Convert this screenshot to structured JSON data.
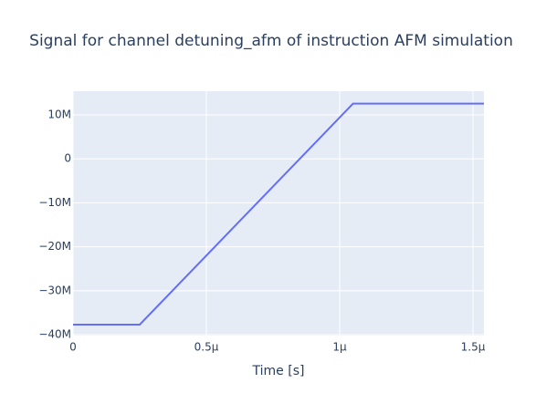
{
  "chart_data": {
    "type": "line",
    "title": "Signal for channel detuning_afm of instruction AFM simulation",
    "x_label": "Time [s]",
    "x": [
      0,
      2.5e-07,
      1.05e-06,
      1.541e-06
    ],
    "series": [
      {
        "color": "#636efa",
        "values": [
          -37700000,
          -37700000,
          12570000,
          12570000
        ]
      }
    ],
    "xlim": [
      0,
      1.541e-06
    ],
    "ylim": [
      -40200000,
      15400000
    ],
    "xticks": [
      0,
      {
        "value": 5e-07,
        "label": "0.5μ"
      },
      {
        "value": 1e-06,
        "label": "1μ"
      },
      {
        "value": 1.5e-06,
        "label": "1.5μ"
      }
    ],
    "yticks": [
      {
        "value": -40000000,
        "label": "−40M"
      },
      {
        "value": -30000000,
        "label": "−30M"
      },
      {
        "value": -20000000,
        "label": "−20M"
      },
      {
        "value": -10000000,
        "label": "−10M"
      },
      0,
      {
        "value": 10000000,
        "label": "10M"
      }
    ],
    "grid": true
  }
}
